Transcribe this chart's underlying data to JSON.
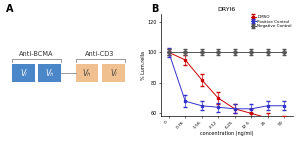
{
  "panel_A": {
    "bcma_label": "Anti-BCMA",
    "cd3_label": "Anti-CD3",
    "boxes_bcma": [
      {
        "text": "Vₗ",
        "color": "#4A86C8"
      },
      {
        "text": "Vₕ",
        "color": "#4A86C8"
      }
    ],
    "boxes_cd3": [
      {
        "text": "Vₕ",
        "color": "#F0C090"
      },
      {
        "text": "Vₗ",
        "color": "#F0C090"
      }
    ],
    "bracket_color": "#999999",
    "linker_color": "#999999",
    "bg_color": "#F5F5F5"
  },
  "panel_B": {
    "title": "DRYl6",
    "xlabel": "concentration (ng/ml)",
    "ylabel": "% Lum.rella",
    "ylim": [
      58,
      125
    ],
    "yticks": [
      60,
      80,
      100,
      120
    ],
    "xticklabels": [
      "0",
      "0.76",
      "1.56",
      "3.12",
      "6.25",
      "12.5",
      "25",
      "50"
    ],
    "series": {
      "DMSO": {
        "color": "#CC0000",
        "values": [
          100,
          95,
          82,
          70,
          63,
          60,
          57,
          55
        ],
        "marker": "s",
        "markersize": 2.0,
        "linestyle": "-"
      },
      "Positive Control": {
        "color": "#3333CC",
        "values": [
          100,
          68,
          65,
          64,
          63,
          63,
          65,
          65
        ],
        "marker": "s",
        "markersize": 2.0,
        "linestyle": "-"
      },
      "Negative Control": {
        "color": "#555555",
        "values": [
          100,
          100,
          100,
          100,
          100,
          100,
          100,
          100
        ],
        "marker": "P",
        "markersize": 2.5,
        "linestyle": "-"
      }
    },
    "error_bars": {
      "DMSO": [
        2,
        3,
        4,
        4,
        3,
        3,
        3,
        3
      ],
      "Positive Control": [
        3,
        4,
        3,
        3,
        3,
        3,
        3,
        3
      ],
      "Negative Control": [
        2,
        2,
        2,
        2,
        2,
        2,
        2,
        2
      ]
    }
  }
}
